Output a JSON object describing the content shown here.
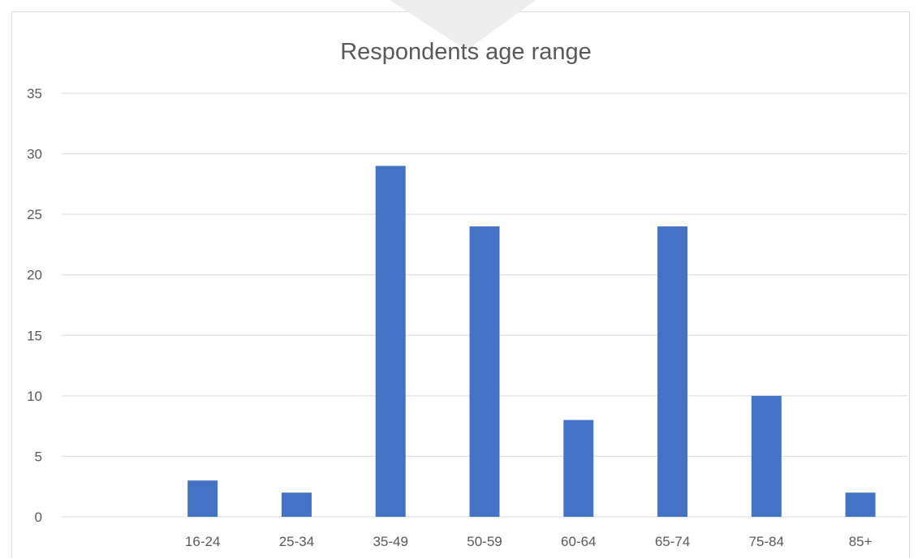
{
  "chart_data": {
    "type": "bar",
    "title": "Respondents age range",
    "categories": [
      "",
      "16-24",
      "25-34",
      "35-49",
      "50-59",
      "60-64",
      "65-74",
      "75-84",
      "85+"
    ],
    "values": [
      0,
      3,
      2,
      29,
      24,
      8,
      24,
      10,
      2
    ],
    "xlabel": "",
    "ylabel": "",
    "ylim": [
      0,
      35
    ],
    "yticks": [
      0,
      5,
      10,
      15,
      20,
      25,
      30,
      35
    ],
    "grid": true,
    "legend": "none",
    "bar_color": "#4472C4",
    "gridline_color": "#d9d9d9",
    "text_color": "#595959"
  }
}
